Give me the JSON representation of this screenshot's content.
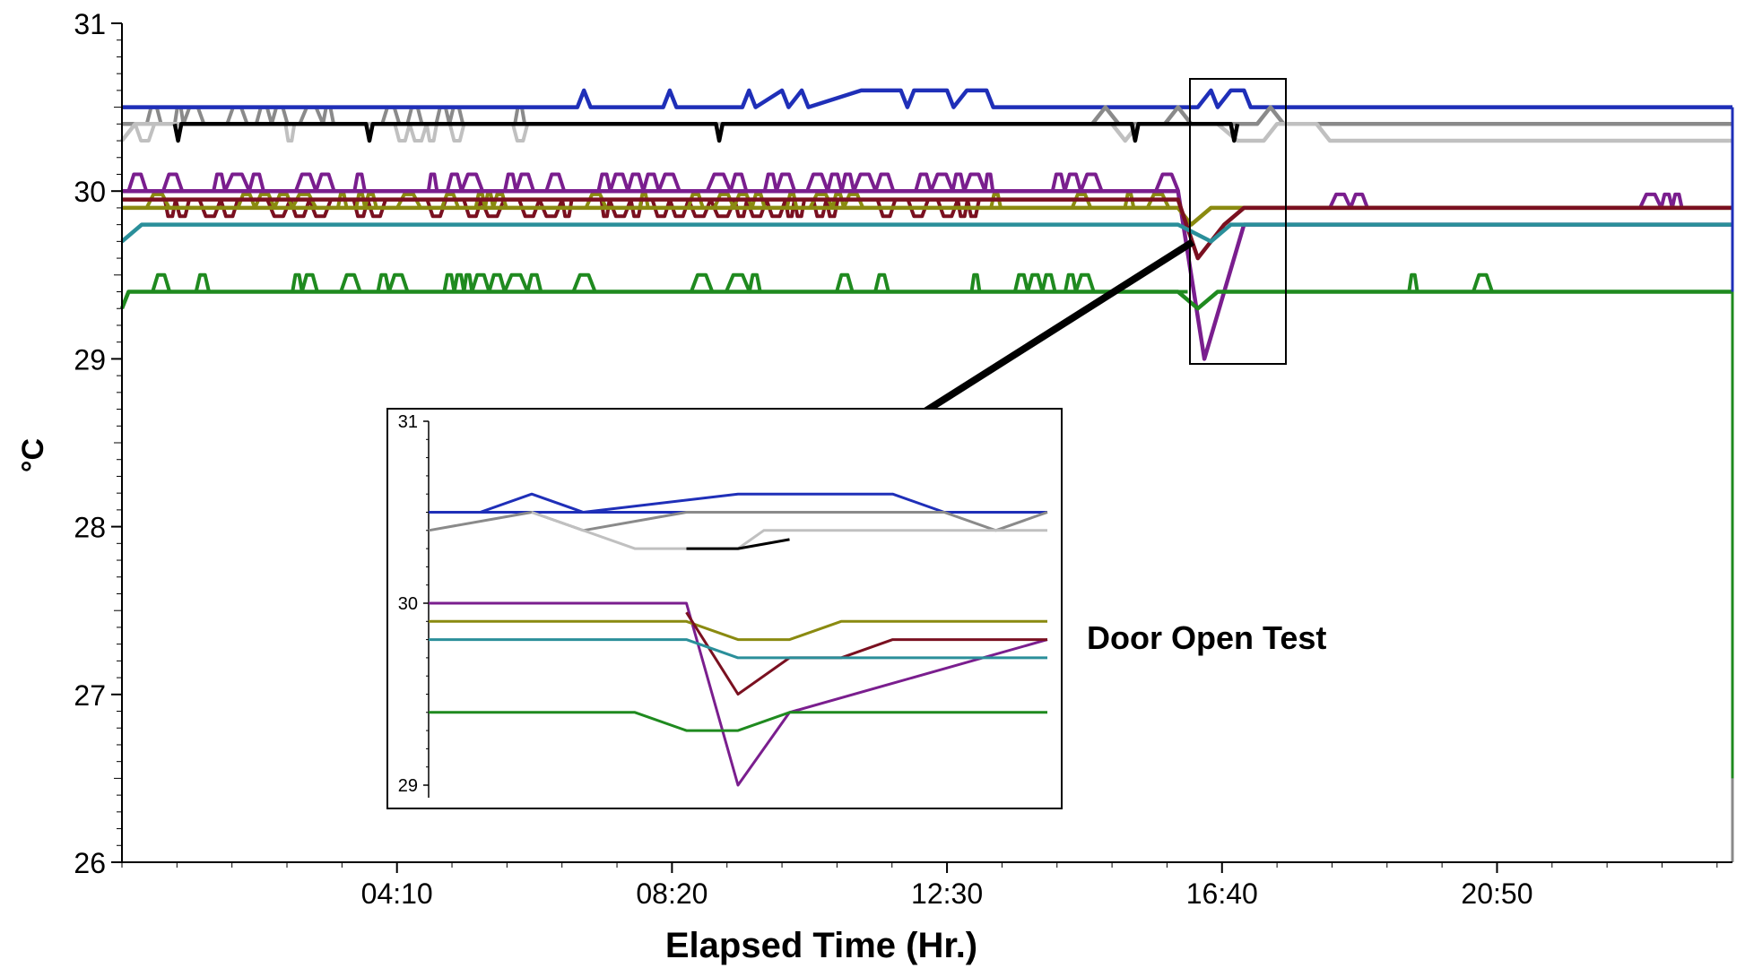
{
  "chart_data": {
    "type": "line",
    "xlabel": "Elapsed Time (Hr.)",
    "ylabel": "°C",
    "ylim": [
      26,
      31
    ],
    "xlim_hours": [
      0,
      24.4
    ],
    "x_tick_labels": [
      "04:10",
      "08:20",
      "12:30",
      "16:40",
      "20:50"
    ],
    "y_tick_labels": [
      "26",
      "27",
      "28",
      "29",
      "30",
      "31"
    ],
    "grid": false,
    "annotation": "Door Open Test",
    "colors": {
      "axis": "#000000",
      "blue": "#1f2fb8",
      "gray": "#8a8a8a",
      "lightgray": "#c0c0c0",
      "black": "#000000",
      "purple": "#7a1e8e",
      "olive": "#8a8a10",
      "maroon": "#7a1020",
      "teal": "#2a8f9a",
      "green": "#1f8a1f"
    },
    "series": [
      {
        "color_key": "blue",
        "baseline": 30.5,
        "values": [
          [
            0,
            30.5
          ],
          [
            6.9,
            30.5
          ],
          [
            7.0,
            30.6
          ],
          [
            7.1,
            30.5
          ],
          [
            8.2,
            30.5
          ],
          [
            8.3,
            30.6
          ],
          [
            8.4,
            30.5
          ],
          [
            9.4,
            30.5
          ],
          [
            9.5,
            30.6
          ],
          [
            9.6,
            30.5
          ],
          [
            10.0,
            30.6
          ],
          [
            10.1,
            30.5
          ],
          [
            10.3,
            30.6
          ],
          [
            10.4,
            30.5
          ],
          [
            11.2,
            30.6
          ],
          [
            11.8,
            30.6
          ],
          [
            11.9,
            30.5
          ],
          [
            12.0,
            30.6
          ],
          [
            12.5,
            30.6
          ],
          [
            12.6,
            30.5
          ],
          [
            12.8,
            30.6
          ],
          [
            13.1,
            30.6
          ],
          [
            13.2,
            30.5
          ],
          [
            16.3,
            30.5
          ],
          [
            16.5,
            30.6
          ],
          [
            16.6,
            30.5
          ],
          [
            16.8,
            30.6
          ],
          [
            17.0,
            30.6
          ],
          [
            17.1,
            30.5
          ],
          [
            24.4,
            30.5
          ]
        ]
      },
      {
        "color_key": "gray",
        "baseline": 30.4,
        "values": [
          [
            0,
            30.4
          ],
          [
            14.7,
            30.4
          ],
          [
            14.9,
            30.5
          ],
          [
            15.1,
            30.4
          ],
          [
            15.8,
            30.4
          ],
          [
            16.0,
            30.5
          ],
          [
            16.2,
            30.4
          ],
          [
            17.2,
            30.4
          ],
          [
            17.4,
            30.5
          ],
          [
            17.6,
            30.4
          ],
          [
            24.4,
            30.4
          ]
        ]
      },
      {
        "color_key": "lightgray",
        "baseline": 30.3,
        "values": [
          [
            0,
            30.3
          ],
          [
            0.2,
            30.4
          ],
          [
            15.0,
            30.4
          ],
          [
            15.2,
            30.3
          ],
          [
            15.4,
            30.4
          ],
          [
            16.6,
            30.4
          ],
          [
            16.9,
            30.3
          ],
          [
            17.3,
            30.3
          ],
          [
            17.5,
            30.4
          ],
          [
            18.1,
            30.4
          ],
          [
            18.3,
            30.3
          ],
          [
            24.4,
            30.3
          ]
        ]
      },
      {
        "color_key": "black",
        "baseline": 30.4,
        "values": [
          [
            0.8,
            30.4
          ],
          [
            0.85,
            30.3
          ],
          [
            0.9,
            30.4
          ],
          [
            3.7,
            30.4
          ],
          [
            3.75,
            30.3
          ],
          [
            3.8,
            30.4
          ],
          [
            9.0,
            30.4
          ],
          [
            9.05,
            30.3
          ],
          [
            9.1,
            30.4
          ],
          [
            15.3,
            30.4
          ],
          [
            15.35,
            30.3
          ],
          [
            15.4,
            30.4
          ],
          [
            16.8,
            30.4
          ],
          [
            16.85,
            30.3
          ],
          [
            16.9,
            30.4
          ]
        ]
      },
      {
        "color_key": "purple",
        "baseline": 30.0,
        "values": [
          [
            0,
            30.0
          ],
          [
            16.0,
            30.0
          ],
          [
            16.4,
            29.0
          ],
          [
            17.0,
            29.8
          ],
          [
            24.4,
            29.8
          ]
        ]
      },
      {
        "color_key": "olive",
        "baseline": 29.9,
        "values": [
          [
            0,
            29.9
          ],
          [
            16.0,
            29.9
          ],
          [
            16.2,
            29.8
          ],
          [
            16.5,
            29.9
          ],
          [
            24.4,
            29.9
          ]
        ]
      },
      {
        "color_key": "maroon",
        "baseline": 29.95,
        "values": [
          [
            0,
            29.95
          ],
          [
            16.0,
            29.95
          ],
          [
            16.3,
            29.6
          ],
          [
            16.7,
            29.8
          ],
          [
            17.0,
            29.9
          ],
          [
            24.4,
            29.9
          ]
        ]
      },
      {
        "color_key": "teal",
        "baseline": 29.8,
        "values": [
          [
            0,
            29.7
          ],
          [
            0.3,
            29.8
          ],
          [
            16.0,
            29.8
          ],
          [
            16.5,
            29.7
          ],
          [
            16.8,
            29.8
          ],
          [
            24.4,
            29.8
          ]
        ]
      },
      {
        "color_key": "green",
        "baseline": 29.4,
        "values": [
          [
            0,
            29.3
          ],
          [
            0.1,
            29.4
          ],
          [
            16.0,
            29.4
          ],
          [
            16.3,
            29.3
          ],
          [
            16.6,
            29.4
          ],
          [
            24.4,
            29.4
          ]
        ]
      }
    ],
    "inset": {
      "y_tick_labels": [
        "31",
        "30",
        "29"
      ],
      "ylim": [
        29,
        31
      ],
      "xlim": [
        0,
        12
      ],
      "series": [
        {
          "color_key": "blue",
          "values": [
            [
              0,
              30.5
            ],
            [
              12,
              30.5
            ]
          ]
        },
        {
          "color_key": "blue",
          "values": [
            [
              1,
              30.5
            ],
            [
              2,
              30.6
            ],
            [
              3,
              30.5
            ],
            [
              6,
              30.6
            ],
            [
              9,
              30.6
            ],
            [
              10,
              30.5
            ]
          ]
        },
        {
          "color_key": "gray",
          "values": [
            [
              0,
              30.4
            ],
            [
              2,
              30.5
            ],
            [
              3,
              30.4
            ],
            [
              5,
              30.5
            ],
            [
              10,
              30.5
            ],
            [
              11,
              30.4
            ],
            [
              12,
              30.5
            ]
          ]
        },
        {
          "color_key": "lightgray",
          "values": [
            [
              2,
              30.5
            ],
            [
              4,
              30.3
            ],
            [
              6,
              30.3
            ],
            [
              6.5,
              30.4
            ],
            [
              12,
              30.4
            ]
          ]
        },
        {
          "color_key": "black",
          "values": [
            [
              5,
              30.3
            ],
            [
              6,
              30.3
            ],
            [
              7,
              30.35
            ]
          ]
        },
        {
          "color_key": "purple",
          "values": [
            [
              0,
              30.0
            ],
            [
              5,
              30.0
            ],
            [
              6,
              29.0
            ],
            [
              7,
              29.4
            ],
            [
              12,
              29.8
            ]
          ]
        },
        {
          "color_key": "olive",
          "values": [
            [
              0,
              29.9
            ],
            [
              5,
              29.9
            ],
            [
              6,
              29.8
            ],
            [
              7,
              29.8
            ],
            [
              8,
              29.9
            ],
            [
              12,
              29.9
            ]
          ]
        },
        {
          "color_key": "maroon",
          "values": [
            [
              5,
              29.95
            ],
            [
              6,
              29.5
            ],
            [
              7,
              29.7
            ],
            [
              8,
              29.7
            ],
            [
              9,
              29.8
            ],
            [
              12,
              29.8
            ]
          ]
        },
        {
          "color_key": "teal",
          "values": [
            [
              0,
              29.8
            ],
            [
              5,
              29.8
            ],
            [
              6,
              29.7
            ],
            [
              7,
              29.7
            ],
            [
              12,
              29.7
            ]
          ]
        },
        {
          "color_key": "green",
          "values": [
            [
              0,
              29.4
            ],
            [
              4,
              29.4
            ],
            [
              5,
              29.3
            ],
            [
              6,
              29.3
            ],
            [
              7,
              29.4
            ],
            [
              12,
              29.4
            ]
          ]
        }
      ]
    }
  }
}
